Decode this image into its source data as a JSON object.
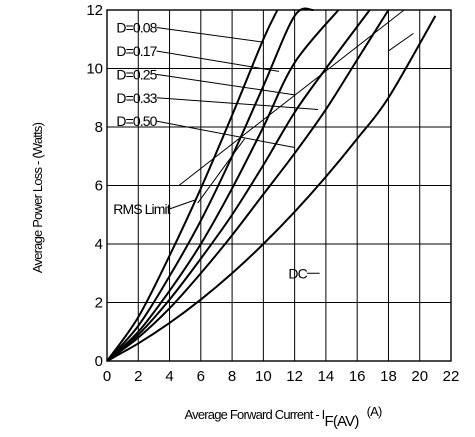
{
  "chart_data": {
    "type": "line",
    "xlabel": "Average Forward Current - I",
    "xlabel_sub": "F(AV)",
    "xlabel_unit": "(A)",
    "ylabel": "Average Power Loss - (Watts)",
    "xlim": [
      0,
      22
    ],
    "ylim": [
      0,
      12
    ],
    "x_ticks": [
      0,
      2,
      4,
      6,
      8,
      10,
      12,
      14,
      16,
      18,
      20,
      22
    ],
    "y_ticks": [
      0,
      2,
      4,
      6,
      8,
      10,
      12
    ],
    "x_tick_labels": [
      "0",
      "2",
      "4",
      "6",
      "8",
      "10",
      "12",
      "14",
      "16",
      "18",
      "20",
      "22"
    ],
    "y_tick_labels": [
      "0",
      "2",
      "4",
      "6",
      "8",
      "10",
      "12"
    ],
    "grid": true,
    "series": [
      {
        "name": "D=0.08",
        "x": [
          0,
          2,
          4,
          6,
          8,
          10,
          10.9
        ],
        "y": [
          0,
          1.5,
          3.6,
          5.9,
          8.4,
          11.0,
          12.0
        ]
      },
      {
        "name": "D=0.17",
        "x": [
          0,
          2,
          4,
          6,
          8,
          10,
          12,
          13.2
        ],
        "y": [
          0,
          1.2,
          2.9,
          4.8,
          7.0,
          9.4,
          11.8,
          12.0
        ]
      },
      {
        "name": "D=0.25",
        "x": [
          0,
          2,
          4,
          6,
          8,
          10,
          12,
          14.8
        ],
        "y": [
          0,
          1.0,
          2.4,
          4.0,
          5.9,
          8.0,
          10.2,
          12.0
        ]
      },
      {
        "name": "D=0.33",
        "x": [
          0,
          2,
          4,
          6,
          8,
          10,
          12,
          14,
          16.8
        ],
        "y": [
          0,
          0.9,
          2.1,
          3.5,
          5.0,
          6.7,
          8.5,
          10.0,
          12.0
        ]
      },
      {
        "name": "D=0.50",
        "x": [
          0,
          2,
          4,
          6,
          8,
          10,
          12,
          14,
          16,
          18
        ],
        "y": [
          0,
          0.8,
          1.8,
          3.0,
          4.3,
          5.7,
          7.1,
          8.6,
          10.3,
          12.0
        ]
      },
      {
        "name": "DC",
        "x": [
          0,
          2,
          4,
          6,
          8,
          10,
          12,
          14,
          16,
          18,
          21.0
        ],
        "y": [
          0,
          0.6,
          1.3,
          2.1,
          3.0,
          4.0,
          5.1,
          6.3,
          7.6,
          9.0,
          11.8
        ]
      }
    ],
    "rms_limit": {
      "label": "RMS Limit",
      "x": [
        4.6,
        19.0
      ],
      "y": [
        6.0,
        12.0
      ]
    },
    "labels": [
      {
        "text": "D=0.08",
        "lx": 0.6,
        "ly": 11.4,
        "tx": 10.0,
        "ty": 10.9
      },
      {
        "text": "D=0.17",
        "lx": 0.6,
        "ly": 10.6,
        "tx": 11.0,
        "ty": 9.9
      },
      {
        "text": "D=0.25",
        "lx": 0.6,
        "ly": 9.8,
        "tx": 12.0,
        "ty": 9.1
      },
      {
        "text": "D=0.33",
        "lx": 0.6,
        "ly": 9.0,
        "tx": 13.5,
        "ty": 8.6
      },
      {
        "text": "D=0.50",
        "lx": 0.6,
        "ly": 8.2,
        "tx": 12.0,
        "ty": 7.3
      },
      {
        "text": "RMS Limit",
        "lx": 0.4,
        "ly": 5.2,
        "tx": 5.6,
        "ty": 5.5
      },
      {
        "text": "DC",
        "lx": 11.6,
        "ly": 3.0,
        "tx": 13.6,
        "ty": 3.0
      }
    ],
    "rms_limit_leaders": [
      {
        "x1": 5.8,
        "y1": 5.4,
        "x2": 8.8,
        "y2": 7.6
      },
      {
        "x1": 18.0,
        "y1": 10.6,
        "x2": 19.6,
        "y2": 11.2
      }
    ]
  }
}
